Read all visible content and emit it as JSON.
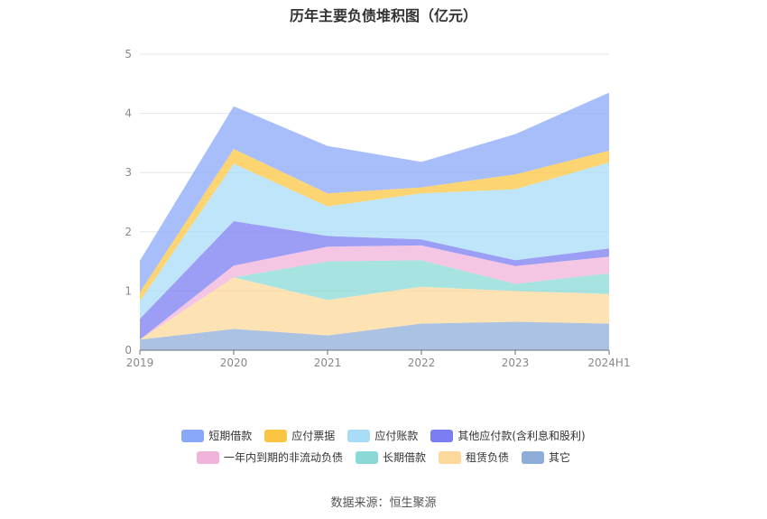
{
  "chart_data": {
    "type": "area",
    "stacked": true,
    "title": "历年主要负债堆积图（亿元）",
    "x": [
      "2019",
      "2020",
      "2021",
      "2022",
      "2023",
      "2024H1"
    ],
    "ylim": [
      0,
      5
    ],
    "yticks": [
      "0",
      "1",
      "2",
      "3",
      "4",
      "5"
    ],
    "grid": true,
    "legend_position": "bottom",
    "series": [
      {
        "name": "其它",
        "color": "#8fadd9",
        "values": [
          0.18,
          0.36,
          0.25,
          0.45,
          0.48,
          0.45
        ]
      },
      {
        "name": "租赁负债",
        "color": "#fcd99a",
        "values": [
          0.0,
          0.87,
          0.6,
          0.62,
          0.52,
          0.5
        ]
      },
      {
        "name": "长期借款",
        "color": "#8ad9d6",
        "values": [
          0.0,
          0.0,
          0.65,
          0.45,
          0.12,
          0.35
        ]
      },
      {
        "name": "一年内到期的非流动负债",
        "color": "#f0b3da",
        "values": [
          0.0,
          0.2,
          0.25,
          0.25,
          0.3,
          0.28
        ]
      },
      {
        "name": "其他应付款(含利息和股利)",
        "color": "#7b7df2",
        "values": [
          0.35,
          0.75,
          0.18,
          0.1,
          0.1,
          0.14
        ]
      },
      {
        "name": "应付账款",
        "color": "#a8dcf7",
        "values": [
          0.3,
          0.97,
          0.5,
          0.78,
          1.2,
          1.45
        ]
      },
      {
        "name": "应付票据",
        "color": "#fbc543",
        "values": [
          0.15,
          0.25,
          0.22,
          0.1,
          0.25,
          0.2
        ]
      },
      {
        "name": "短期借款",
        "color": "#8aa8f8",
        "values": [
          0.53,
          0.72,
          0.8,
          0.43,
          0.68,
          0.98
        ]
      }
    ]
  },
  "legend_rows": [
    [
      {
        "label": "短期借款",
        "color": "#8aa8f8"
      },
      {
        "label": "应付票据",
        "color": "#fbc543"
      },
      {
        "label": "应付账款",
        "color": "#a8dcf7"
      },
      {
        "label": "其他应付款(含利息和股利)",
        "color": "#7b7df2"
      }
    ],
    [
      {
        "label": "一年内到期的非流动负债",
        "color": "#f0b3da"
      },
      {
        "label": "长期借款",
        "color": "#8ad9d6"
      },
      {
        "label": "租赁负债",
        "color": "#fcd99a"
      },
      {
        "label": "其它",
        "color": "#8fadd9"
      }
    ]
  ],
  "source": "数据来源：恒生聚源"
}
